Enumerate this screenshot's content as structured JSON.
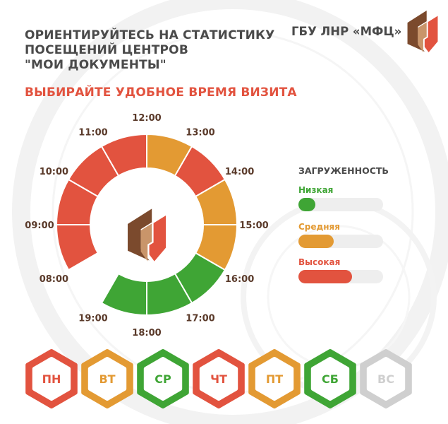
{
  "header": {
    "headline_lines": [
      "ОРИЕНТИРУЙТЕСЬ НА СТАТИСТИКУ",
      "ПОСЕЩЕНИЙ ЦЕНТРОВ",
      "\"МОИ ДОКУМЕНТЫ\""
    ],
    "subheadline": "ВЫБИРАЙТЕ УДОБНОЕ ВРЕМЯ ВИЗИТА",
    "org_name": "ГБУ ЛНР «МФЦ»"
  },
  "colors": {
    "low": "#3fa535",
    "medium": "#e39a33",
    "high": "#e2533f",
    "off": "#cfcfcf",
    "text": "#4a4a4a",
    "logo_brown": "#7b4a2d",
    "logo_tan": "#c9956a"
  },
  "schedule": {
    "hours": [
      {
        "time": "08:00",
        "load": "high"
      },
      {
        "time": "09:00",
        "load": "high"
      },
      {
        "time": "10:00",
        "load": "high"
      },
      {
        "time": "11:00",
        "load": "high"
      },
      {
        "time": "12:00",
        "load": "medium"
      },
      {
        "time": "13:00",
        "load": "high"
      },
      {
        "time": "14:00",
        "load": "medium"
      },
      {
        "time": "15:00",
        "load": "medium"
      },
      {
        "time": "16:00",
        "load": "low"
      },
      {
        "time": "17:00",
        "load": "low"
      },
      {
        "time": "18:00",
        "load": "low"
      },
      {
        "time": "19:00",
        "load": null
      }
    ]
  },
  "legend": {
    "title": "ЗАГРУЖЕННОСТЬ",
    "items": [
      {
        "label": "Низкая",
        "level": "low",
        "fill": 0.2
      },
      {
        "label": "Средняя",
        "level": "medium",
        "fill": 0.42
      },
      {
        "label": "Высокая",
        "level": "high",
        "fill": 0.63
      }
    ]
  },
  "days": [
    {
      "label": "ПН",
      "load": "high"
    },
    {
      "label": "ВТ",
      "load": "medium"
    },
    {
      "label": "СР",
      "load": "low"
    },
    {
      "label": "ЧТ",
      "load": "high"
    },
    {
      "label": "ПТ",
      "load": "medium"
    },
    {
      "label": "СБ",
      "load": "low"
    },
    {
      "label": "ВС",
      "load": "off"
    }
  ]
}
